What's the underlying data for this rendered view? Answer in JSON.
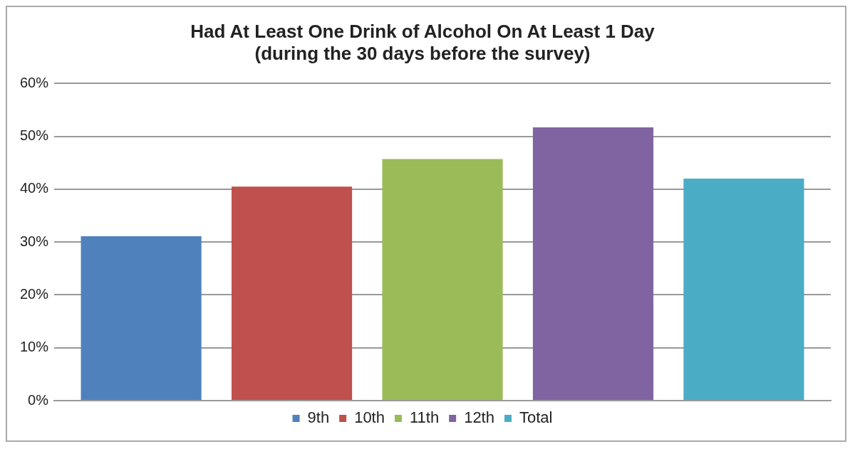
{
  "chart_data": {
    "type": "bar",
    "title": "Had At Least One Drink of Alcohol On At Least 1 Day",
    "subtitle": "(during the 30 days before the survey)",
    "categories": [
      null
    ],
    "series": [
      {
        "name": "9th",
        "color": "#4f81bd",
        "values": [
          31.1
        ]
      },
      {
        "name": "10th",
        "color": "#c0504d",
        "values": [
          40.5
        ]
      },
      {
        "name": "11th",
        "color": "#9bbb59",
        "values": [
          45.7
        ]
      },
      {
        "name": "12th",
        "color": "#8064a2",
        "values": [
          51.7
        ]
      },
      {
        "name": "Total",
        "color": "#4bacc6",
        "values": [
          42.0
        ]
      }
    ],
    "ylim": [
      0,
      60
    ],
    "yticks": [
      {
        "value": 0,
        "label": "0%"
      },
      {
        "value": 10,
        "label": "10%"
      },
      {
        "value": 20,
        "label": "20%"
      },
      {
        "value": 30,
        "label": "30%"
      },
      {
        "value": 40,
        "label": "40%"
      },
      {
        "value": 50,
        "label": "50%"
      },
      {
        "value": 60,
        "label": "60%"
      }
    ],
    "grid": "y",
    "legend": "bottom"
  }
}
